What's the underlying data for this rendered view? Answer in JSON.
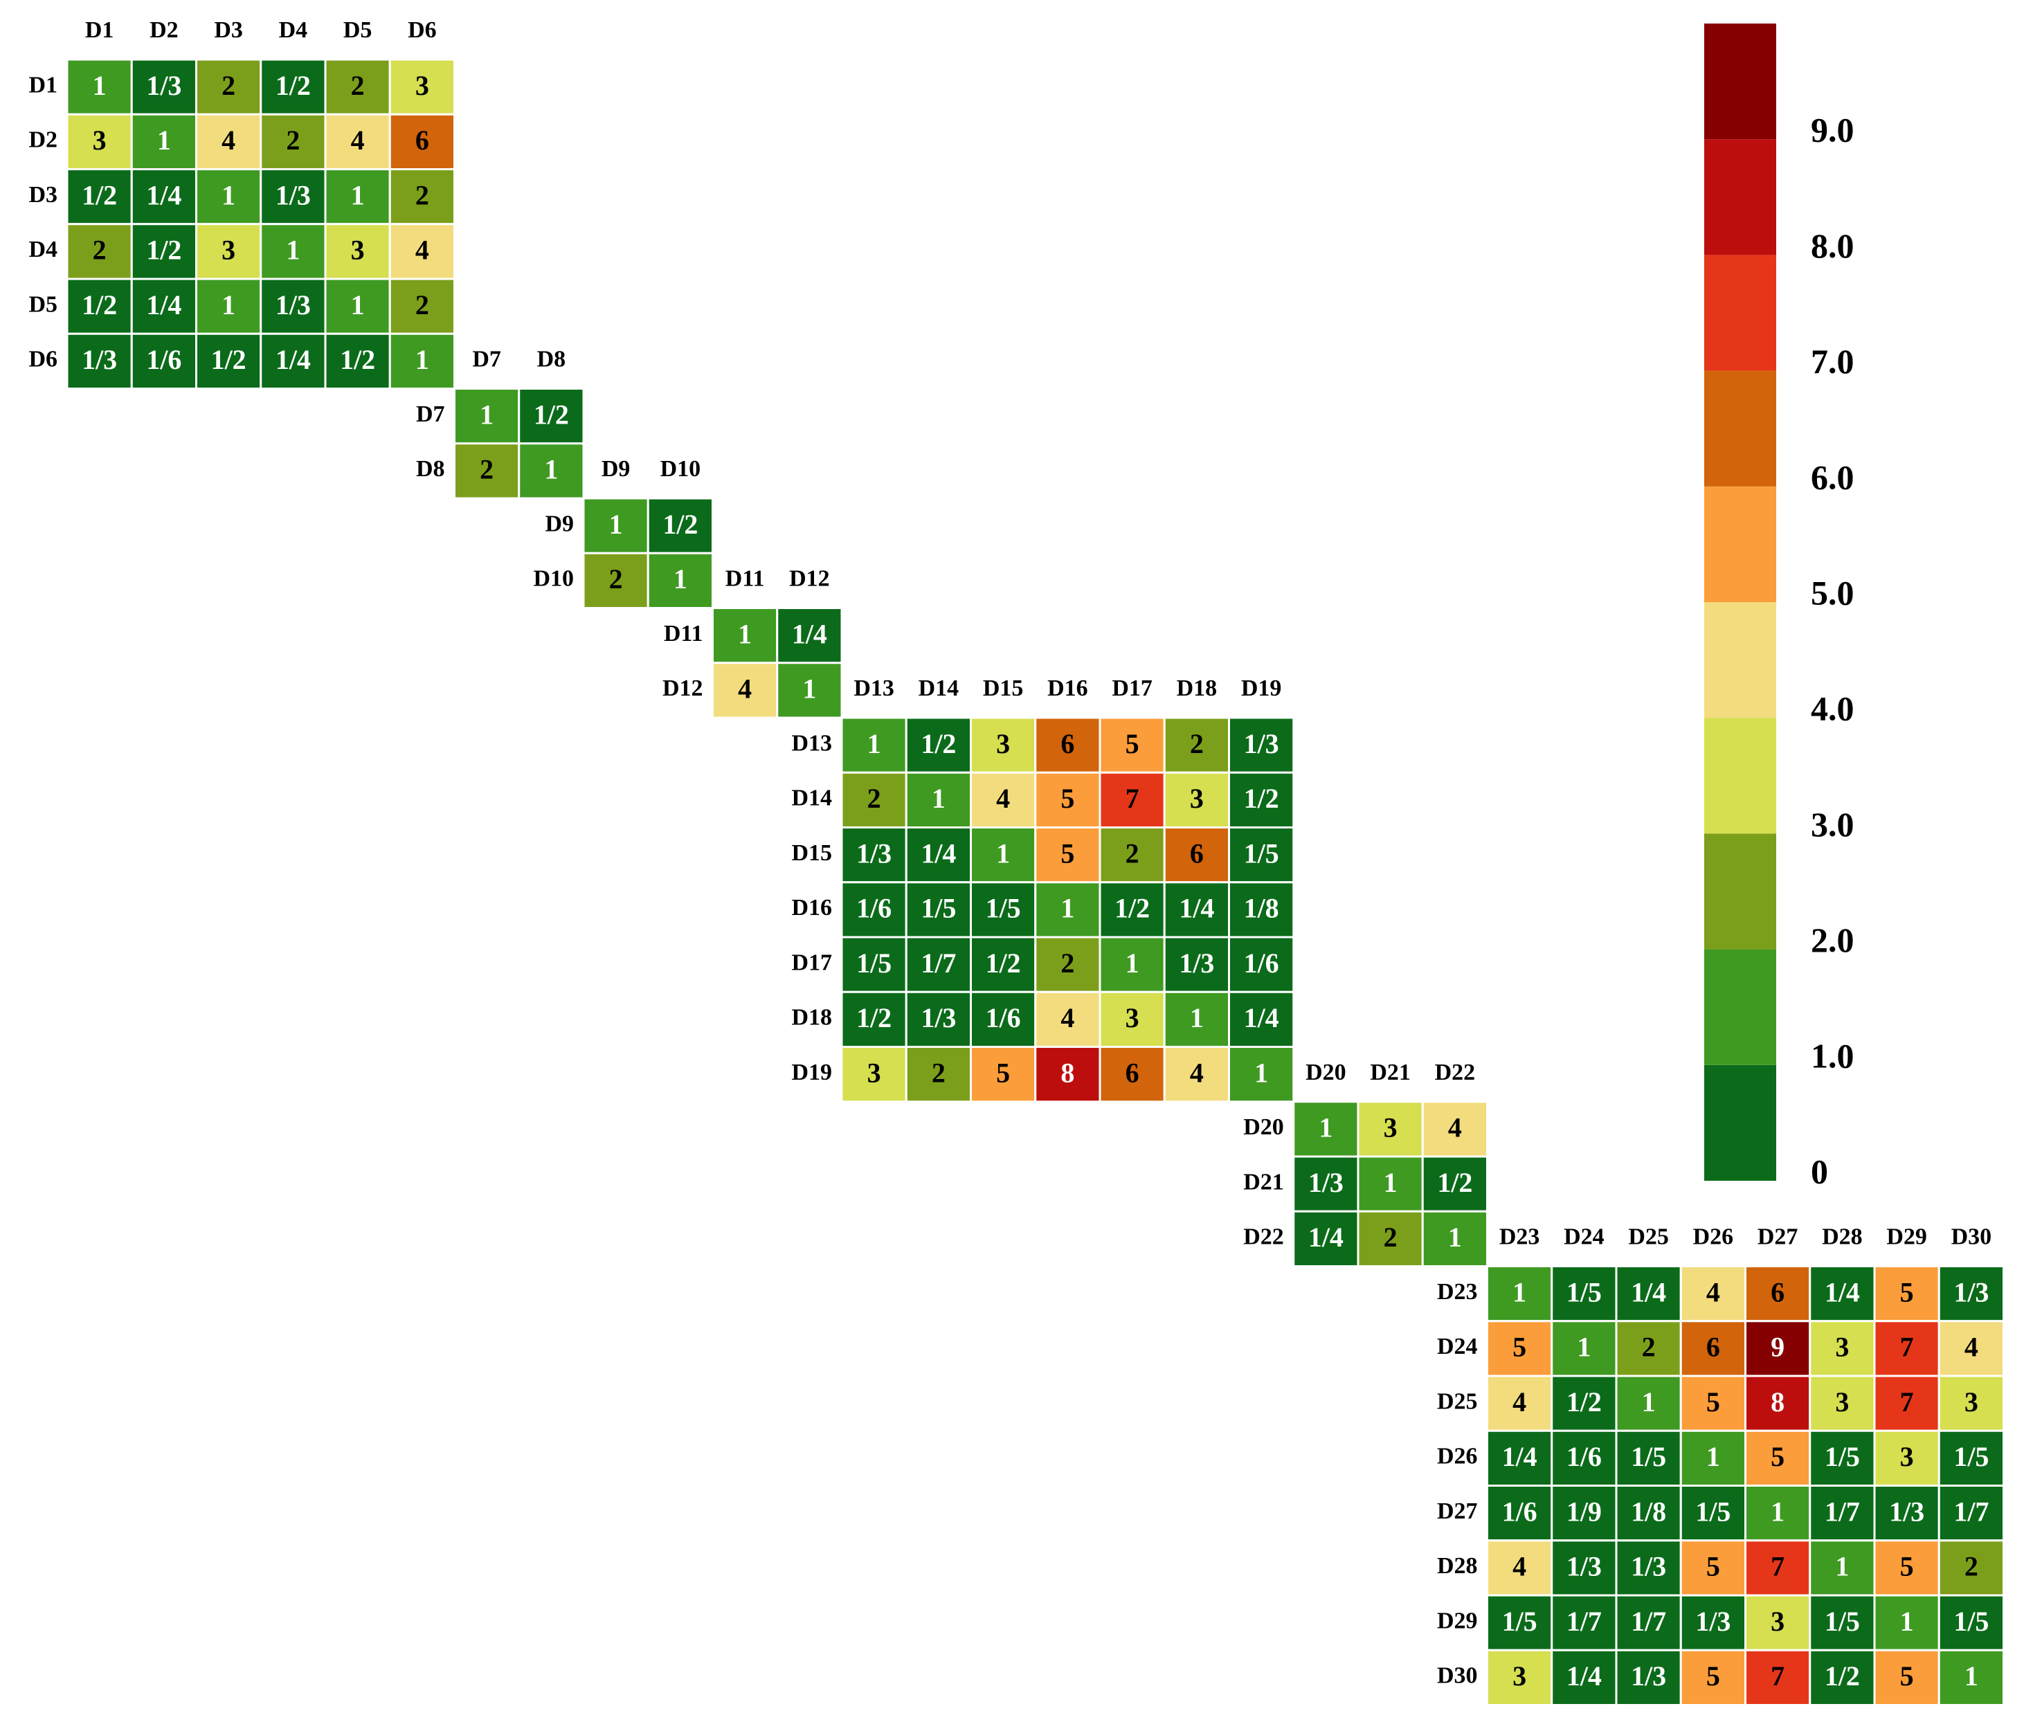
{
  "chart_data": {
    "type": "heatmap",
    "blocks": [
      {
        "labels": [
          "D1",
          "D2",
          "D3",
          "D4",
          "D5",
          "D6"
        ],
        "values": [
          [
            1,
            0.3333,
            2,
            0.5,
            2,
            3
          ],
          [
            3,
            1,
            4,
            2,
            4,
            6
          ],
          [
            0.5,
            0.25,
            1,
            0.3333,
            1,
            2
          ],
          [
            2,
            0.5,
            3,
            1,
            3,
            4
          ],
          [
            0.5,
            0.25,
            1,
            0.3333,
            1,
            2
          ],
          [
            0.3333,
            0.1667,
            0.5,
            0.25,
            0.5,
            1
          ]
        ],
        "value_labels": [
          [
            "1",
            "1/3",
            "2",
            "1/2",
            "2",
            "3"
          ],
          [
            "3",
            "1",
            "4",
            "2",
            "4",
            "6"
          ],
          [
            "1/2",
            "1/4",
            "1",
            "1/3",
            "1",
            "2"
          ],
          [
            "2",
            "1/2",
            "3",
            "1",
            "3",
            "4"
          ],
          [
            "1/2",
            "1/4",
            "1",
            "1/3",
            "1",
            "2"
          ],
          [
            "1/3",
            "1/6",
            "1/2",
            "1/4",
            "1/2",
            "1"
          ]
        ]
      },
      {
        "labels": [
          "D7",
          "D8"
        ],
        "values": [
          [
            1,
            0.5
          ],
          [
            2,
            1
          ]
        ],
        "value_labels": [
          [
            "1",
            "1/2"
          ],
          [
            "2",
            "1"
          ]
        ]
      },
      {
        "labels": [
          "D9",
          "D10"
        ],
        "values": [
          [
            1,
            0.5
          ],
          [
            2,
            1
          ]
        ],
        "value_labels": [
          [
            "1",
            "1/2"
          ],
          [
            "2",
            "1"
          ]
        ]
      },
      {
        "labels": [
          "D11",
          "D12"
        ],
        "values": [
          [
            1,
            0.25
          ],
          [
            4,
            1
          ]
        ],
        "value_labels": [
          [
            "1",
            "1/4"
          ],
          [
            "4",
            "1"
          ]
        ]
      },
      {
        "labels": [
          "D13",
          "D14",
          "D15",
          "D16",
          "D17",
          "D18",
          "D19"
        ],
        "values": [
          [
            1,
            0.5,
            3,
            6,
            5,
            2,
            0.3333
          ],
          [
            2,
            1,
            4,
            5,
            7,
            3,
            0.5
          ],
          [
            0.3333,
            0.25,
            1,
            5,
            2,
            6,
            0.2
          ],
          [
            0.1667,
            0.2,
            0.2,
            1,
            0.5,
            0.25,
            0.125
          ],
          [
            0.2,
            0.1429,
            0.5,
            2,
            1,
            0.3333,
            0.1667
          ],
          [
            0.5,
            0.3333,
            0.1667,
            4,
            3,
            1,
            0.25
          ],
          [
            3,
            2,
            5,
            8,
            6,
            4,
            1
          ]
        ],
        "value_labels": [
          [
            "1",
            "1/2",
            "3",
            "6",
            "5",
            "2",
            "1/3"
          ],
          [
            "2",
            "1",
            "4",
            "5",
            "7",
            "3",
            "1/2"
          ],
          [
            "1/3",
            "1/4",
            "1",
            "5",
            "2",
            "6",
            "1/5"
          ],
          [
            "1/6",
            "1/5",
            "1/5",
            "1",
            "1/2",
            "1/4",
            "1/8"
          ],
          [
            "1/5",
            "1/7",
            "1/2",
            "2",
            "1",
            "1/3",
            "1/6"
          ],
          [
            "1/2",
            "1/3",
            "1/6",
            "4",
            "3",
            "1",
            "1/4"
          ],
          [
            "3",
            "2",
            "5",
            "8",
            "6",
            "4",
            "1"
          ]
        ]
      },
      {
        "labels": [
          "D20",
          "D21",
          "D22"
        ],
        "values": [
          [
            1,
            3,
            4
          ],
          [
            0.3333,
            1,
            0.5
          ],
          [
            0.25,
            2,
            1
          ]
        ],
        "value_labels": [
          [
            "1",
            "3",
            "4"
          ],
          [
            "1/3",
            "1",
            "1/2"
          ],
          [
            "1/4",
            "2",
            "1"
          ]
        ]
      },
      {
        "labels": [
          "D23",
          "D24",
          "D25",
          "D26",
          "D27",
          "D28",
          "D29",
          "D30"
        ],
        "values": [
          [
            1,
            0.2,
            0.25,
            4,
            6,
            0.25,
            5,
            0.3333
          ],
          [
            5,
            1,
            2,
            6,
            9,
            3,
            7,
            4
          ],
          [
            4,
            0.5,
            1,
            5,
            8,
            3,
            7,
            3
          ],
          [
            0.25,
            0.1667,
            0.2,
            1,
            5,
            0.2,
            3,
            0.2
          ],
          [
            0.1667,
            0.1111,
            0.125,
            0.2,
            1,
            0.1429,
            0.3333,
            0.1429
          ],
          [
            4,
            0.3333,
            0.3333,
            5,
            7,
            1,
            5,
            2
          ],
          [
            0.2,
            0.1429,
            0.1429,
            0.3333,
            3,
            0.2,
            1,
            0.2
          ],
          [
            3,
            0.25,
            0.3333,
            5,
            7,
            0.5,
            5,
            1
          ]
        ],
        "value_labels": [
          [
            "1",
            "1/5",
            "1/4",
            "4",
            "6",
            "1/4",
            "5",
            "1/3"
          ],
          [
            "5",
            "1",
            "2",
            "6",
            "9",
            "3",
            "7",
            "4"
          ],
          [
            "4",
            "1/2",
            "1",
            "5",
            "8",
            "3",
            "7",
            "3"
          ],
          [
            "1/4",
            "1/6",
            "1/5",
            "1",
            "5",
            "1/5",
            "3",
            "1/5"
          ],
          [
            "1/6",
            "1/9",
            "1/8",
            "1/5",
            "1",
            "1/7",
            "1/3",
            "1/7"
          ],
          [
            "4",
            "1/3",
            "1/3",
            "5",
            "7",
            "1",
            "5",
            "2"
          ],
          [
            "1/5",
            "1/7",
            "1/7",
            "1/3",
            "3",
            "1/5",
            "1",
            "1/5"
          ],
          [
            "3",
            "1/4",
            "1/3",
            "5",
            "7",
            "1/2",
            "5",
            "1"
          ]
        ]
      }
    ],
    "clim": [
      0,
      10
    ],
    "colors": [
      "#0b6b1a",
      "#3f9a22",
      "#7c9f1b",
      "#d5df50",
      "#f2dc7e",
      "#fb9d3a",
      "#d2640c",
      "#e6361a",
      "#bd0e0e",
      "#850000"
    ],
    "cticks": [
      0,
      {
        "value": 1,
        "label": "1.0"
      },
      {
        "value": 2,
        "label": "2.0"
      },
      {
        "value": 3,
        "label": "3.0"
      },
      {
        "value": 4,
        "label": "4.0"
      },
      {
        "value": 5,
        "label": "5.0"
      },
      {
        "value": 6,
        "label": "6.0"
      },
      {
        "value": 7,
        "label": "7.0"
      },
      {
        "value": 8,
        "label": "8.0"
      },
      {
        "value": 9,
        "label": "9.0"
      }
    ]
  }
}
